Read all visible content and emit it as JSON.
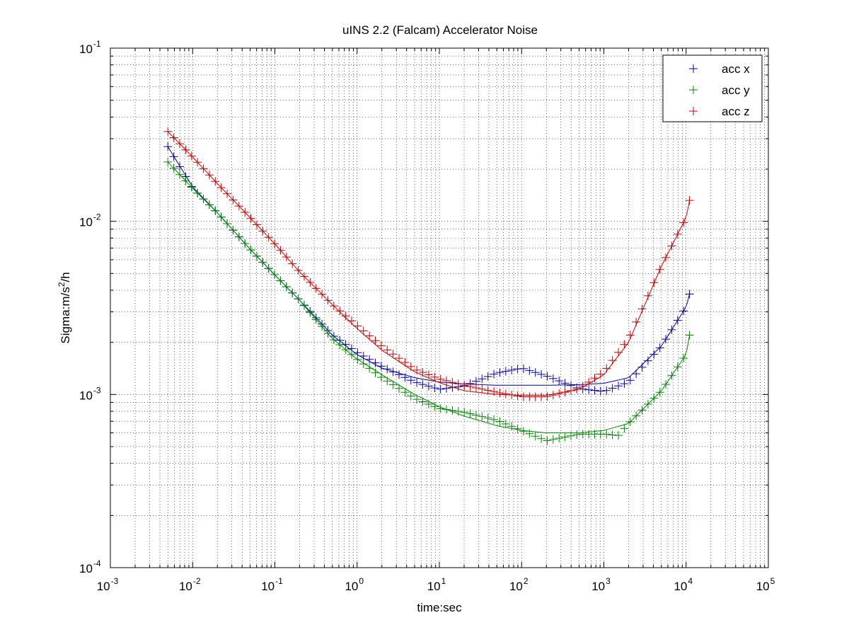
{
  "chart_data": {
    "type": "scatter",
    "title": "uINS 2.2 (Falcam) Accelerator Noise",
    "xlabel": "time:sec",
    "ylabel": {
      "prefix": "Sigma:m/s",
      "sup": "2",
      "suffix": "/h"
    },
    "xscale": "log",
    "yscale": "log",
    "xlim": [
      0.001,
      100000
    ],
    "ylim": [
      0.0001,
      0.1
    ],
    "grid": true,
    "legend_position": "top-right",
    "x_ticks": [
      {
        "base": "10",
        "exp": "-3"
      },
      {
        "base": "10",
        "exp": "-2"
      },
      {
        "base": "10",
        "exp": "-1"
      },
      {
        "base": "10",
        "exp": "0"
      },
      {
        "base": "10",
        "exp": "1"
      },
      {
        "base": "10",
        "exp": "2"
      },
      {
        "base": "10",
        "exp": "3"
      },
      {
        "base": "10",
        "exp": "4"
      },
      {
        "base": "10",
        "exp": "5"
      }
    ],
    "y_ticks": [
      {
        "base": "10",
        "exp": "-4"
      },
      {
        "base": "10",
        "exp": "-3"
      },
      {
        "base": "10",
        "exp": "-2"
      },
      {
        "base": "10",
        "exp": "-1"
      }
    ],
    "series": [
      {
        "name": "acc x",
        "color": "#0000aa",
        "marker": "+",
        "x": [
          0.005,
          0.01,
          0.02,
          0.05,
          0.1,
          0.2,
          0.5,
          1,
          2,
          5,
          10,
          20,
          50,
          100,
          200,
          500,
          1000,
          2000,
          5000,
          10000,
          11000
        ],
        "y": [
          0.027,
          0.0155,
          0.0112,
          0.0069,
          0.0049,
          0.0035,
          0.0022,
          0.00175,
          0.00145,
          0.00118,
          0.00107,
          0.00112,
          0.00133,
          0.00142,
          0.00128,
          0.00108,
          0.00104,
          0.00118,
          0.0019,
          0.0032,
          0.0038
        ],
        "fit_x": [
          0.005,
          0.01,
          0.02,
          0.05,
          0.1,
          0.2,
          0.5,
          1,
          2,
          5,
          10,
          20,
          50,
          100,
          200,
          500,
          1000,
          2000,
          5000,
          10000,
          11000
        ],
        "fit_y": [
          0.027,
          0.0158,
          0.0112,
          0.0069,
          0.0049,
          0.0035,
          0.0022,
          0.0017,
          0.00142,
          0.00125,
          0.00118,
          0.00115,
          0.00113,
          0.00113,
          0.00113,
          0.00114,
          0.00116,
          0.00125,
          0.0019,
          0.0032,
          0.0038
        ]
      },
      {
        "name": "acc y",
        "color": "#008800",
        "marker": "+",
        "x": [
          0.005,
          0.01,
          0.02,
          0.05,
          0.1,
          0.2,
          0.5,
          1,
          2,
          5,
          10,
          20,
          50,
          100,
          200,
          500,
          1000,
          1500,
          2000,
          5000,
          10000,
          11000
        ],
        "y": [
          0.022,
          0.0155,
          0.0112,
          0.0069,
          0.0049,
          0.0035,
          0.0021,
          0.0016,
          0.00125,
          0.00095,
          0.00083,
          0.00079,
          0.00071,
          0.00062,
          0.00054,
          0.00059,
          0.00059,
          0.00058,
          0.00068,
          0.00105,
          0.0017,
          0.0022
        ],
        "fit_x": [
          0.005,
          0.01,
          0.02,
          0.05,
          0.1,
          0.2,
          0.5,
          1,
          2,
          5,
          10,
          20,
          50,
          100,
          200,
          500,
          1000,
          2000,
          5000,
          10000,
          11000
        ],
        "fit_y": [
          0.022,
          0.0155,
          0.0112,
          0.0069,
          0.0049,
          0.0035,
          0.0021,
          0.0016,
          0.0013,
          0.001,
          0.00085,
          0.00075,
          0.00066,
          0.00062,
          0.0006,
          0.0006,
          0.00062,
          0.00068,
          0.00105,
          0.0017,
          0.0022
        ]
      },
      {
        "name": "acc z",
        "color": "#cc0000",
        "marker": "+",
        "x": [
          0.005,
          0.01,
          0.02,
          0.05,
          0.1,
          0.2,
          0.5,
          1,
          2,
          5,
          10,
          20,
          50,
          100,
          200,
          500,
          1000,
          2000,
          5000,
          10000,
          11000
        ],
        "y": [
          0.033,
          0.0235,
          0.0165,
          0.0105,
          0.0074,
          0.0051,
          0.0033,
          0.0025,
          0.0019,
          0.0014,
          0.00123,
          0.00113,
          0.00103,
          0.00097,
          0.00097,
          0.00108,
          0.00135,
          0.0021,
          0.0055,
          0.0105,
          0.0132
        ],
        "fit_x": [
          0.005,
          0.01,
          0.02,
          0.05,
          0.1,
          0.2,
          0.5,
          1,
          2,
          5,
          10,
          20,
          50,
          100,
          200,
          500,
          1000,
          2000,
          5000,
          10000,
          11000
        ],
        "fit_y": [
          0.033,
          0.0235,
          0.0165,
          0.0105,
          0.0074,
          0.0051,
          0.0033,
          0.0024,
          0.0018,
          0.00135,
          0.00117,
          0.00105,
          0.001,
          0.00099,
          0.00099,
          0.00107,
          0.0013,
          0.002,
          0.0055,
          0.0105,
          0.0132
        ]
      }
    ]
  }
}
